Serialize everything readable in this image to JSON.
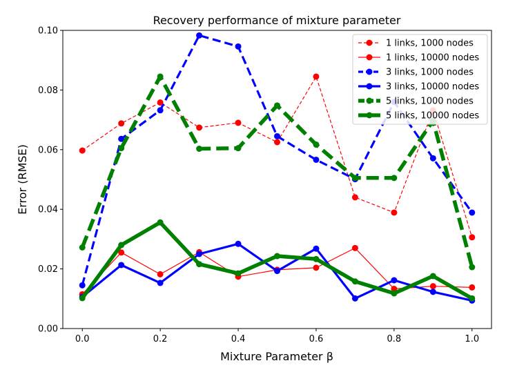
{
  "chart_data": {
    "type": "line",
    "title": "Recovery performance of mixture parameter",
    "xlabel": "Mixture Parameter β",
    "ylabel": "Error (RMSE)",
    "xlim": [
      -0.05,
      1.05
    ],
    "ylim": [
      0.0,
      0.1
    ],
    "x_ticks": [
      "0.0",
      "0.2",
      "0.4",
      "0.6",
      "0.8",
      "1.0"
    ],
    "y_ticks": [
      "0.00",
      "0.02",
      "0.04",
      "0.06",
      "0.08",
      "0.10"
    ],
    "legend_position": "top-right",
    "grid": false,
    "x": [
      0.0,
      0.1,
      0.2,
      0.3,
      0.4,
      0.5,
      0.6,
      0.7,
      0.8,
      0.9,
      1.0
    ],
    "series": [
      {
        "name": "1 links, 1000 nodes",
        "color": "#ff0000",
        "style": "dashed",
        "weight": "thin",
        "values": [
          0.0597,
          0.0688,
          0.0758,
          0.0674,
          0.069,
          0.0625,
          0.0845,
          0.044,
          0.0389,
          0.0732,
          0.0306
        ]
      },
      {
        "name": "1 links, 10000 nodes",
        "color": "#ff0000",
        "style": "solid",
        "weight": "thin",
        "values": [
          0.0115,
          0.0255,
          0.0182,
          0.0256,
          0.0174,
          0.0197,
          0.0204,
          0.027,
          0.0133,
          0.0142,
          0.0138
        ]
      },
      {
        "name": "3 links, 1000 nodes",
        "color": "#0000ff",
        "style": "dashed",
        "weight": "medium",
        "values": [
          0.0145,
          0.0636,
          0.0732,
          0.0983,
          0.0946,
          0.0645,
          0.0566,
          0.0501,
          0.076,
          0.0571,
          0.0389
        ]
      },
      {
        "name": "3 links, 10000 nodes",
        "color": "#0000ff",
        "style": "solid",
        "weight": "medium",
        "values": [
          0.0106,
          0.0213,
          0.0153,
          0.025,
          0.0284,
          0.0193,
          0.0268,
          0.0101,
          0.0162,
          0.0123,
          0.0094
        ]
      },
      {
        "name": "5 links, 1000 nodes",
        "color": "#008000",
        "style": "dashed",
        "weight": "thick",
        "values": [
          0.0272,
          0.0605,
          0.0845,
          0.0603,
          0.0605,
          0.0748,
          0.0617,
          0.0505,
          0.0505,
          0.0697,
          0.0206
        ]
      },
      {
        "name": "5 links, 10000 nodes",
        "color": "#008000",
        "style": "solid",
        "weight": "thick",
        "values": [
          0.0102,
          0.028,
          0.0356,
          0.0216,
          0.0185,
          0.0243,
          0.0233,
          0.0158,
          0.0118,
          0.0176,
          0.0101
        ]
      }
    ]
  }
}
